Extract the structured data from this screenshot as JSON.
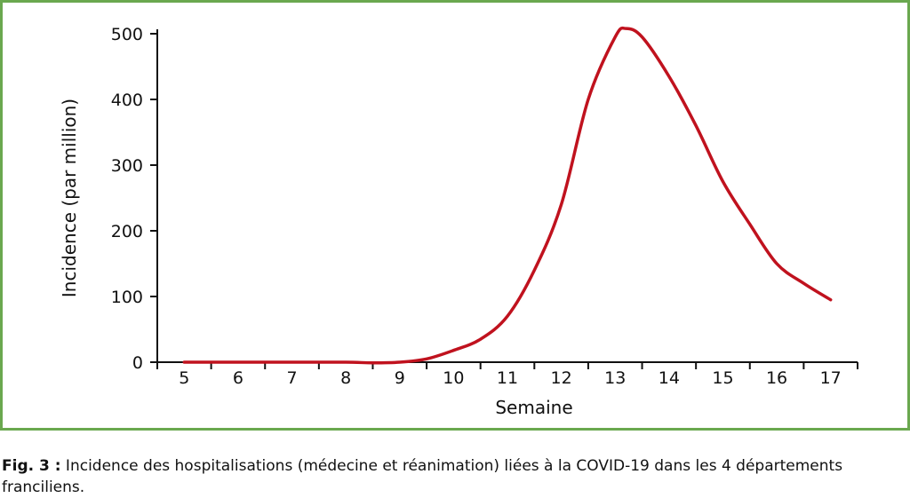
{
  "chart_data": {
    "type": "line",
    "xlabel": "Semaine",
    "ylabel": "Incidence (par million)",
    "xlim": [
      4.5,
      17.5
    ],
    "ylim": [
      0,
      500
    ],
    "x_ticks": [
      "5",
      "6",
      "7",
      "8",
      "9",
      "10",
      "11",
      "12",
      "13",
      "14",
      "15",
      "16",
      "17"
    ],
    "y_ticks": [
      "0",
      "100",
      "200",
      "300",
      "400",
      "500"
    ],
    "grid": false,
    "series": [
      {
        "color": "#c0121e",
        "points": [
          [
            5,
            0
          ],
          [
            6,
            0
          ],
          [
            7,
            0
          ],
          [
            8,
            0
          ],
          [
            8.5,
            -1
          ],
          [
            9,
            0
          ],
          [
            9.5,
            5
          ],
          [
            10,
            18
          ],
          [
            10.5,
            35
          ],
          [
            11,
            70
          ],
          [
            11.5,
            140
          ],
          [
            12,
            240
          ],
          [
            12.5,
            400
          ],
          [
            13,
            495
          ],
          [
            13.2,
            508
          ],
          [
            13.5,
            495
          ],
          [
            14,
            435
          ],
          [
            14.5,
            360
          ],
          [
            15,
            275
          ],
          [
            15.5,
            210
          ],
          [
            16,
            150
          ],
          [
            16.5,
            120
          ],
          [
            17,
            95
          ]
        ]
      }
    ]
  },
  "caption": {
    "label": "Fig. 3 :",
    "text": " Incidence des hospitalisations (médecine et réanimation) liées à la COVID-19 dans les 4 départements franciliens."
  }
}
